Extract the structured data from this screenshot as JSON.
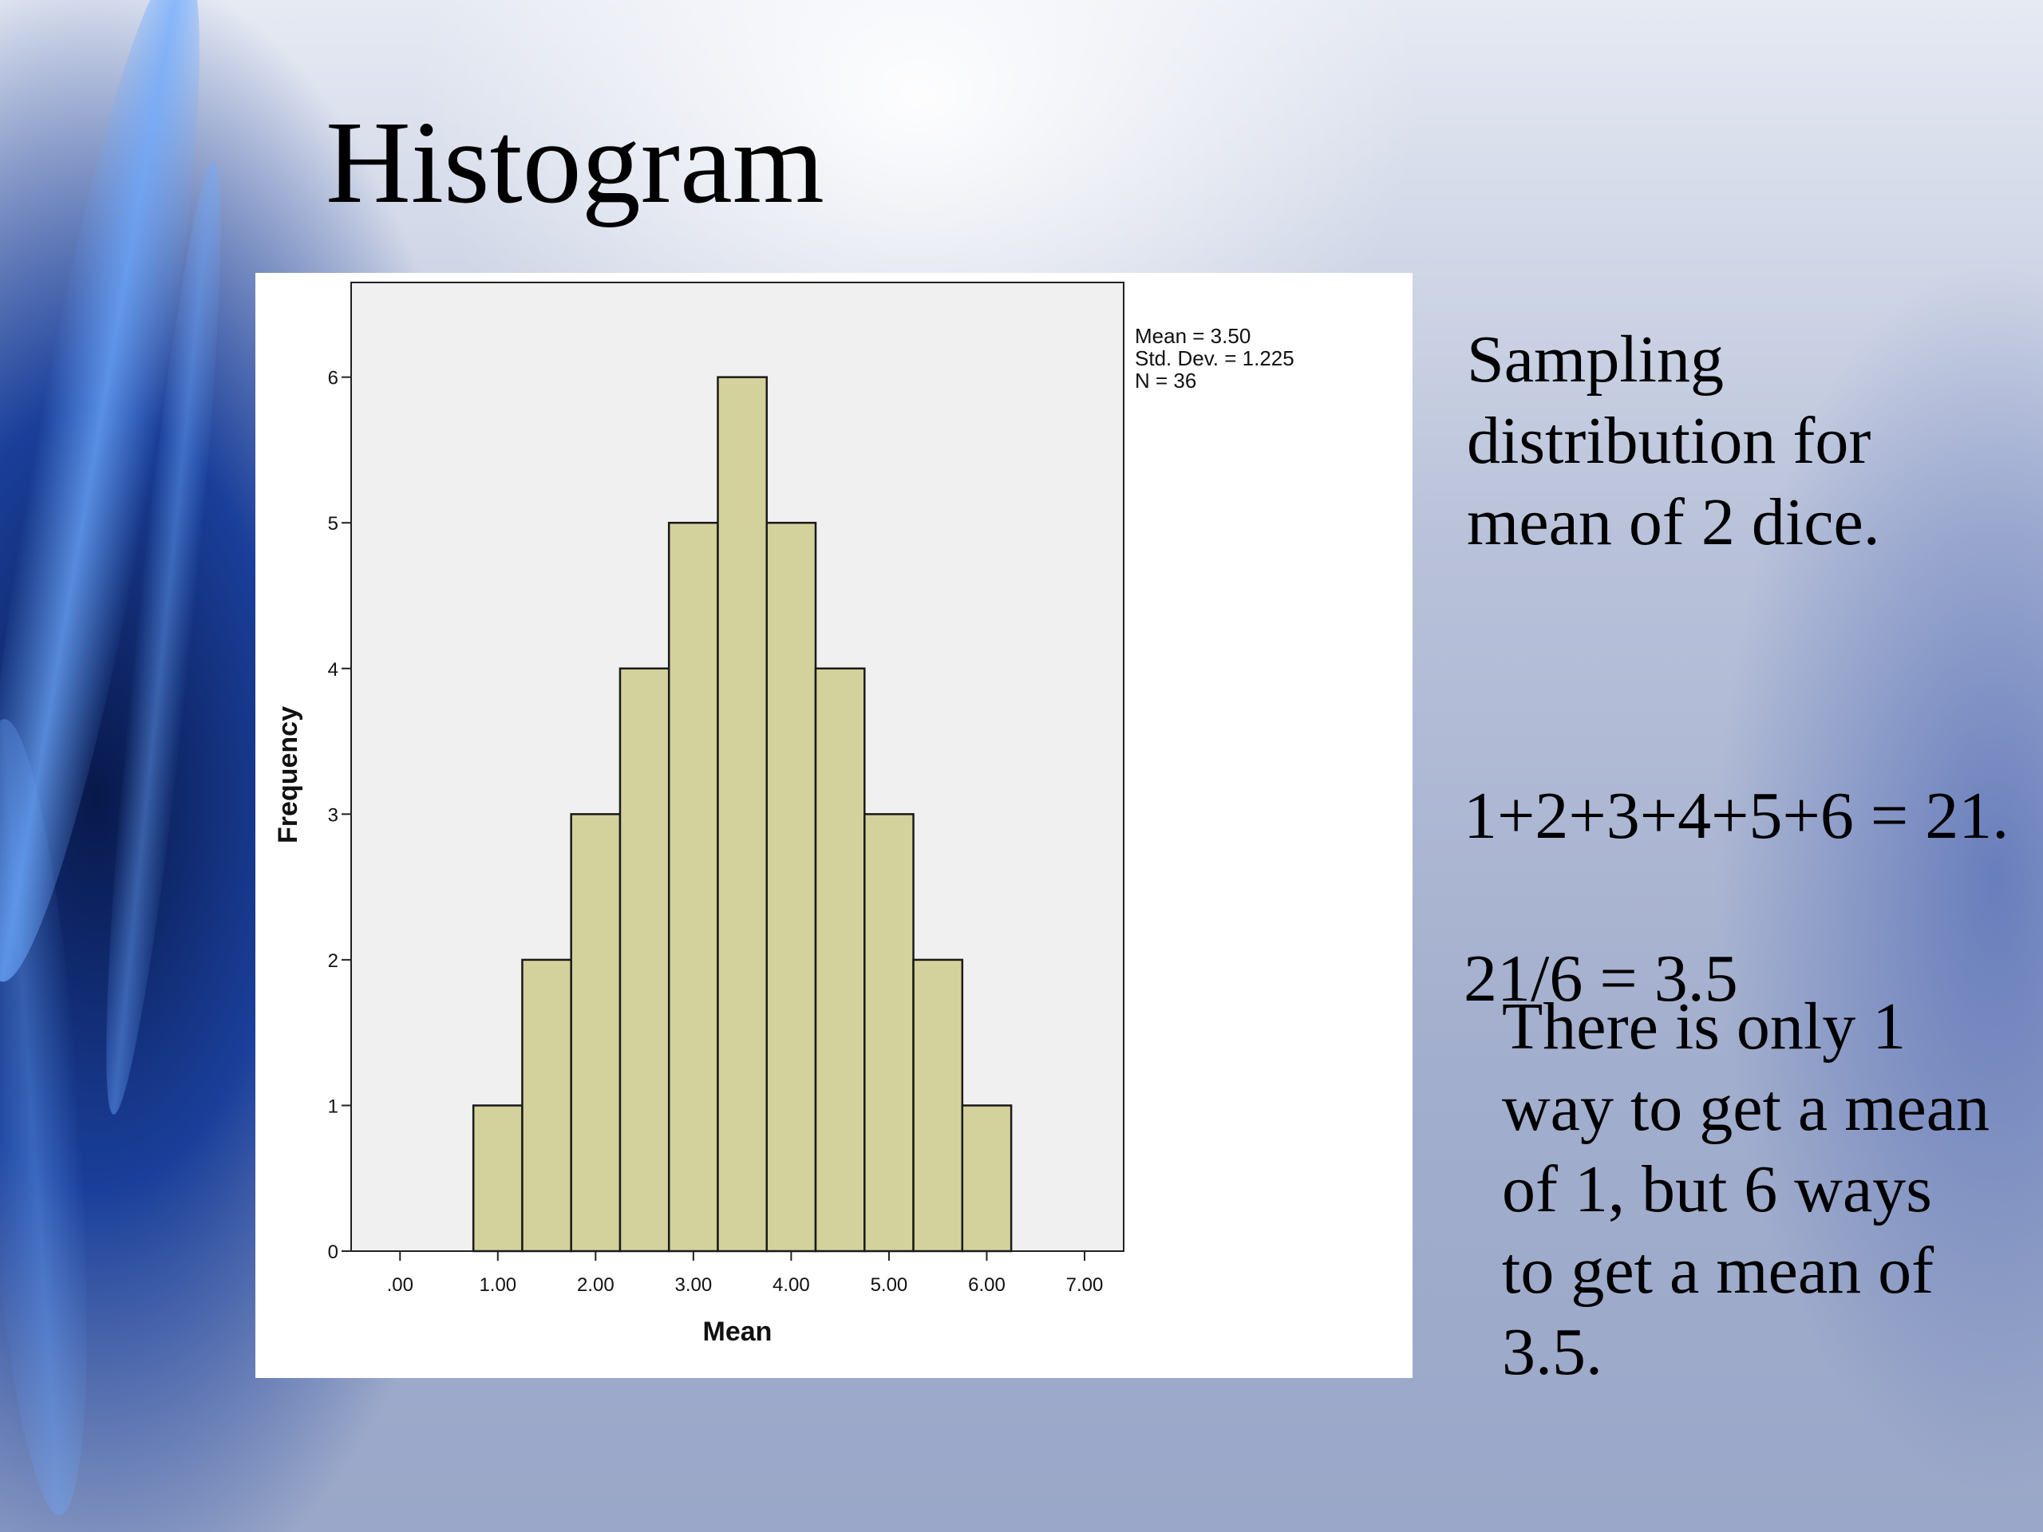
{
  "slide": {
    "title": "Histogram",
    "notes": {
      "sampling": "Sampling distribution for mean of 2 dice.",
      "calculation_line1": "1+2+3+4+5+6 = 21.",
      "calculation_line2": "21/6 = 3.5",
      "ways": "There is only 1 way to get a mean of 1, but 6 ways to get a mean of 3.5."
    }
  },
  "chart_data": {
    "type": "bar",
    "histogram": true,
    "title": "",
    "xlabel": "Mean",
    "ylabel": "Frequency",
    "bin_width": 0.5,
    "bin_centers": [
      1.0,
      1.5,
      2.0,
      2.5,
      3.0,
      3.5,
      4.0,
      4.5,
      5.0,
      5.5,
      6.0
    ],
    "values": [
      1,
      2,
      3,
      4,
      5,
      6,
      5,
      4,
      3,
      2,
      1
    ],
    "xlim": [
      -0.5,
      7.4
    ],
    "ylim": [
      0,
      6.65
    ],
    "x_ticks": [
      0,
      1,
      2,
      3,
      4,
      5,
      6,
      7
    ],
    "x_tick_labels": [
      ".00",
      "1.00",
      "2.00",
      "3.00",
      "4.00",
      "5.00",
      "6.00",
      "7.00"
    ],
    "y_ticks": [
      0,
      1,
      2,
      3,
      4,
      5,
      6
    ],
    "y_tick_labels": [
      "0",
      "1",
      "2",
      "3",
      "4",
      "5",
      "6"
    ],
    "stats": [
      "Mean = 3.50",
      "Std. Dev. = 1.225",
      "N = 36"
    ],
    "stats_placement": "top-right, outside plot",
    "grid": false,
    "colors": {
      "bar_fill": "#d4d29c",
      "bar_stroke": "#1a1a1a",
      "plot_background": "#f0f0f0"
    }
  }
}
